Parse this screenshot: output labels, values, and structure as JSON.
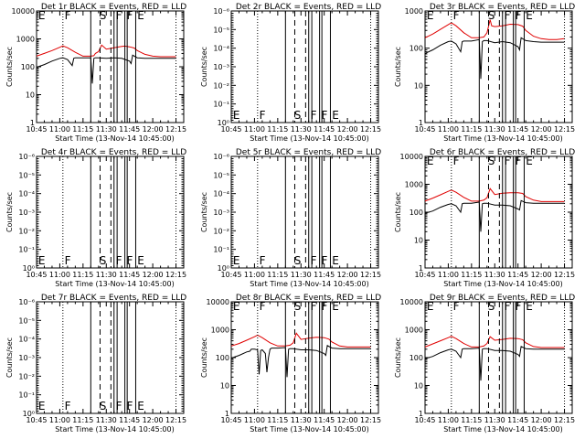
{
  "figure": {
    "xlabel": "Start Time (13-Nov-14 10:45:00)",
    "ylabel": "Counts/sec",
    "xticks": [
      "10:45",
      "11:00",
      "11:15",
      "11:30",
      "11:45",
      "12:00",
      "12:15"
    ],
    "x_range_minutes": [
      0,
      95
    ],
    "colors": {
      "events": "#000000",
      "lld": "#e00000"
    }
  },
  "chart_data": [
    {
      "type": "line",
      "title": "Det 1r BLACK = Events, RED = LLD",
      "has_data": true,
      "ylim": [
        1,
        10000
      ],
      "yscale": "log",
      "yticks": [
        "1",
        "10",
        "100",
        "1000",
        "10000"
      ],
      "xticks": [
        "10:45",
        "11:00",
        "11:15",
        "11:30",
        "11:45",
        "12:00",
        "12:15"
      ],
      "xlabel": "Start Time (13-Nov-14 10:45:00)",
      "ylabel": "Counts/sec",
      "markers": [
        "E",
        "F",
        "S",
        "F",
        "F",
        "E"
      ],
      "series": [
        {
          "name": "LLD",
          "color": "#e00000",
          "x": [
            0,
            5,
            10,
            15,
            17,
            20,
            25,
            30,
            35,
            37,
            38,
            40,
            42,
            45,
            50,
            55,
            57,
            60,
            63,
            65,
            70,
            75,
            80,
            85,
            90
          ],
          "y": [
            240,
            300,
            380,
            500,
            560,
            480,
            330,
            240,
            240,
            250,
            300,
            350,
            600,
            430,
            480,
            540,
            550,
            520,
            470,
            380,
            280,
            240,
            230,
            230,
            230
          ]
        },
        {
          "name": "Events",
          "color": "#000000",
          "x": [
            0,
            1,
            5,
            10,
            15,
            17,
            20,
            23,
            24,
            25,
            30,
            35,
            36,
            37,
            38,
            40,
            45,
            50,
            55,
            60,
            61,
            62,
            65,
            70,
            75,
            80,
            85,
            90
          ],
          "y": [
            90,
            100,
            120,
            160,
            200,
            210,
            180,
            110,
            200,
            210,
            210,
            210,
            25,
            200,
            210,
            210,
            200,
            210,
            200,
            160,
            130,
            260,
            210,
            200,
            200,
            200,
            200,
            200
          ]
        }
      ]
    },
    {
      "type": "line",
      "title": "Det 2r BLACK = Events, RED = LLD",
      "has_data": false,
      "yscale": "log",
      "yticks": [
        "10⁰",
        "10⁻¹",
        "10⁻²",
        "10⁻³",
        "10⁻⁴",
        "10⁻⁵",
        "10⁻⁶"
      ],
      "xticks": [
        "10:45",
        "11:00",
        "11:15",
        "11:30",
        "11:45",
        "12:00",
        "12:15"
      ],
      "xlabel": "Start Time (13-Nov-14 10:45:00)",
      "ylabel": "Counts/sec",
      "markers": [
        "E",
        "F",
        "S",
        "F",
        "F",
        "E"
      ],
      "series": []
    },
    {
      "type": "line",
      "title": "Det 3r BLACK = Events, RED = LLD",
      "has_data": true,
      "ylim": [
        1,
        1000
      ],
      "yscale": "log",
      "yticks": [
        "1",
        "10",
        "100",
        "1000"
      ],
      "xticks": [
        "10:45",
        "11:00",
        "11:15",
        "11:30",
        "11:45",
        "12:00",
        "12:15"
      ],
      "xlabel": "Start Time (13-Nov-14 10:45:00)",
      "ylabel": "Counts/sec",
      "markers": [
        "E",
        "F",
        "S",
        "F",
        "F",
        "E"
      ],
      "series": [
        {
          "name": "LLD",
          "color": "#e00000",
          "x": [
            0,
            5,
            10,
            15,
            17,
            20,
            25,
            30,
            35,
            38,
            40,
            42,
            43,
            45,
            50,
            55,
            60,
            63,
            65,
            70,
            75,
            80,
            85,
            90
          ],
          "y": [
            190,
            240,
            320,
            430,
            480,
            400,
            260,
            190,
            190,
            200,
            260,
            580,
            400,
            380,
            400,
            440,
            430,
            390,
            300,
            210,
            180,
            170,
            170,
            180
          ]
        },
        {
          "name": "Events",
          "color": "#000000",
          "x": [
            0,
            1,
            5,
            10,
            15,
            17,
            20,
            23,
            24,
            25,
            30,
            35,
            36,
            37,
            38,
            40,
            45,
            50,
            55,
            60,
            61,
            62,
            65,
            70,
            75,
            80,
            85,
            90
          ],
          "y": [
            70,
            75,
            90,
            120,
            150,
            155,
            130,
            80,
            150,
            155,
            155,
            170,
            15,
            150,
            160,
            160,
            140,
            150,
            140,
            110,
            90,
            190,
            160,
            150,
            145,
            145,
            145,
            145
          ]
        }
      ]
    },
    {
      "type": "line",
      "title": "Det 4r BLACK = Events, RED = LLD",
      "has_data": false,
      "yscale": "log",
      "yticks": [
        "10⁰",
        "10⁻¹",
        "10⁻²",
        "10⁻³",
        "10⁻⁴",
        "10⁻⁵",
        "10⁻⁶"
      ],
      "xticks": [
        "10:45",
        "11:00",
        "11:15",
        "11:30",
        "11:45",
        "12:00",
        "12:15"
      ],
      "xlabel": "Start Time (13-Nov-14 10:45:00)",
      "ylabel": "Counts/sec",
      "markers": [
        "E",
        "F",
        "S",
        "F",
        "F",
        "E"
      ],
      "series": []
    },
    {
      "type": "line",
      "title": "Det 5r BLACK = Events, RED = LLD",
      "has_data": false,
      "yscale": "log",
      "yticks": [
        "10⁰",
        "10⁻¹",
        "10⁻²",
        "10⁻³",
        "10⁻⁴",
        "10⁻⁵",
        "10⁻⁶"
      ],
      "xticks": [
        "10:45",
        "11:00",
        "11:15",
        "11:30",
        "11:45",
        "12:00",
        "12:15"
      ],
      "xlabel": "Start Time (13-Nov-14 10:45:00)",
      "ylabel": "Counts/sec",
      "markers": [
        "E",
        "F",
        "S",
        "F",
        "F",
        "E"
      ],
      "series": []
    },
    {
      "type": "line",
      "title": "Det 6r BLACK = Events, RED = LLD",
      "has_data": true,
      "ylim": [
        1,
        10000
      ],
      "yscale": "log",
      "yticks": [
        "1",
        "10",
        "100",
        "1000",
        "10000"
      ],
      "xticks": [
        "10:45",
        "11:00",
        "11:15",
        "11:30",
        "11:45",
        "12:00",
        "12:15"
      ],
      "xlabel": "Start Time (13-Nov-14 10:45:00)",
      "ylabel": "Counts/sec",
      "markers": [
        "E",
        "F",
        "S",
        "F",
        "F",
        "E"
      ],
      "series": [
        {
          "name": "LLD",
          "color": "#e00000",
          "x": [
            0,
            5,
            10,
            15,
            17,
            20,
            25,
            30,
            35,
            38,
            40,
            42,
            45,
            50,
            55,
            60,
            63,
            65,
            70,
            75,
            80,
            85,
            90
          ],
          "y": [
            250,
            320,
            420,
            560,
            620,
            520,
            340,
            250,
            250,
            270,
            330,
            700,
            430,
            480,
            500,
            500,
            470,
            360,
            270,
            240,
            240,
            240,
            240
          ]
        },
        {
          "name": "Events",
          "color": "#000000",
          "x": [
            0,
            1,
            5,
            10,
            15,
            17,
            20,
            23,
            24,
            25,
            30,
            35,
            36,
            37,
            38,
            40,
            45,
            50,
            55,
            60,
            61,
            62,
            65,
            70,
            75,
            80,
            85,
            90
          ],
          "y": [
            90,
            95,
            110,
            150,
            190,
            200,
            170,
            100,
            200,
            210,
            210,
            230,
            20,
            200,
            210,
            210,
            180,
            180,
            170,
            130,
            120,
            260,
            220,
            210,
            210,
            210,
            210,
            210
          ]
        }
      ]
    },
    {
      "type": "line",
      "title": "Det 7r BLACK = Events, RED = LLD",
      "has_data": false,
      "yscale": "log",
      "yticks": [
        "10⁰",
        "10⁻¹",
        "10⁻²",
        "10⁻³",
        "10⁻⁴",
        "10⁻⁵",
        "10⁻⁶"
      ],
      "xticks": [
        "10:45",
        "11:00",
        "11:15",
        "11:30",
        "11:45",
        "12:00",
        "12:15"
      ],
      "xlabel": "Start Time (13-Nov-14 10:45:00)",
      "ylabel": "Counts/sec",
      "markers": [
        "E",
        "F",
        "S",
        "F",
        "F",
        "E"
      ],
      "series": []
    },
    {
      "type": "line",
      "title": "Det 8r BLACK = Events, RED = LLD",
      "has_data": true,
      "ylim": [
        1,
        10000
      ],
      "yscale": "log",
      "yticks": [
        "1",
        "10",
        "100",
        "1000",
        "10000"
      ],
      "xticks": [
        "10:45",
        "11:00",
        "11:15",
        "11:30",
        "11:45",
        "12:00",
        "12:15"
      ],
      "xlabel": "Start Time (13-Nov-14 10:45:00)",
      "ylabel": "Counts/sec",
      "markers": [
        "E",
        "F",
        "S",
        "F",
        "F",
        "E"
      ],
      "series": [
        {
          "name": "LLD",
          "color": "#e00000",
          "x": [
            0,
            5,
            10,
            15,
            17,
            20,
            25,
            30,
            35,
            38,
            40,
            42,
            45,
            50,
            55,
            60,
            63,
            65,
            70,
            75,
            80,
            85,
            90
          ],
          "y": [
            260,
            320,
            420,
            560,
            640,
            520,
            340,
            260,
            260,
            280,
            340,
            750,
            450,
            500,
            540,
            520,
            460,
            360,
            260,
            240,
            240,
            240,
            240
          ]
        },
        {
          "name": "Events",
          "color": "#000000",
          "x": [
            0,
            1,
            5,
            10,
            12,
            13,
            15,
            17,
            18,
            19,
            20,
            22,
            23,
            24,
            25,
            26,
            30,
            35,
            36,
            37,
            38,
            40,
            45,
            50,
            55,
            60,
            61,
            62,
            65,
            70,
            75,
            80,
            85,
            90
          ],
          "y": [
            90,
            100,
            120,
            160,
            170,
            200,
            200,
            190,
            25,
            180,
            190,
            140,
            30,
            100,
            200,
            220,
            220,
            230,
            20,
            200,
            210,
            210,
            190,
            190,
            180,
            140,
            120,
            270,
            220,
            210,
            210,
            210,
            210,
            210
          ]
        }
      ]
    },
    {
      "type": "line",
      "title": "Det 9r BLACK = Events, RED = LLD",
      "has_data": true,
      "ylim": [
        1,
        10000
      ],
      "yscale": "log",
      "yticks": [
        "1",
        "10",
        "100",
        "1000",
        "10000"
      ],
      "xticks": [
        "10:45",
        "11:00",
        "11:15",
        "11:30",
        "11:45",
        "12:00",
        "12:15"
      ],
      "xlabel": "Start Time (13-Nov-14 10:45:00)",
      "ylabel": "Counts/sec",
      "markers": [
        "E",
        "F",
        "S",
        "F",
        "F",
        "E"
      ],
      "series": [
        {
          "name": "LLD",
          "color": "#e00000",
          "x": [
            0,
            5,
            10,
            15,
            17,
            20,
            25,
            30,
            35,
            38,
            40,
            42,
            45,
            50,
            55,
            60,
            63,
            65,
            70,
            75,
            80,
            85,
            90
          ],
          "y": [
            240,
            310,
            400,
            520,
            580,
            480,
            320,
            240,
            240,
            260,
            320,
            560,
            420,
            450,
            490,
            480,
            440,
            340,
            250,
            230,
            230,
            230,
            230
          ]
        },
        {
          "name": "Events",
          "color": "#000000",
          "x": [
            0,
            1,
            5,
            10,
            15,
            17,
            20,
            23,
            24,
            25,
            30,
            35,
            36,
            37,
            38,
            40,
            45,
            50,
            55,
            60,
            61,
            62,
            65,
            70,
            75,
            80,
            85,
            90
          ],
          "y": [
            90,
            95,
            110,
            150,
            190,
            200,
            170,
            100,
            200,
            210,
            210,
            220,
            15,
            200,
            210,
            210,
            180,
            180,
            170,
            130,
            110,
            250,
            210,
            200,
            200,
            200,
            200,
            200
          ]
        }
      ]
    }
  ],
  "vlines": {
    "dotted_minutes": [
      17,
      90
    ],
    "solid_minutes": [
      35,
      50,
      52,
      57,
      58.5,
      64
    ],
    "dashed_minutes": [
      41,
      48
    ],
    "marker_minutes": [
      0.5,
      17.5,
      40,
      50.5,
      57.5,
      64.5
    ]
  }
}
